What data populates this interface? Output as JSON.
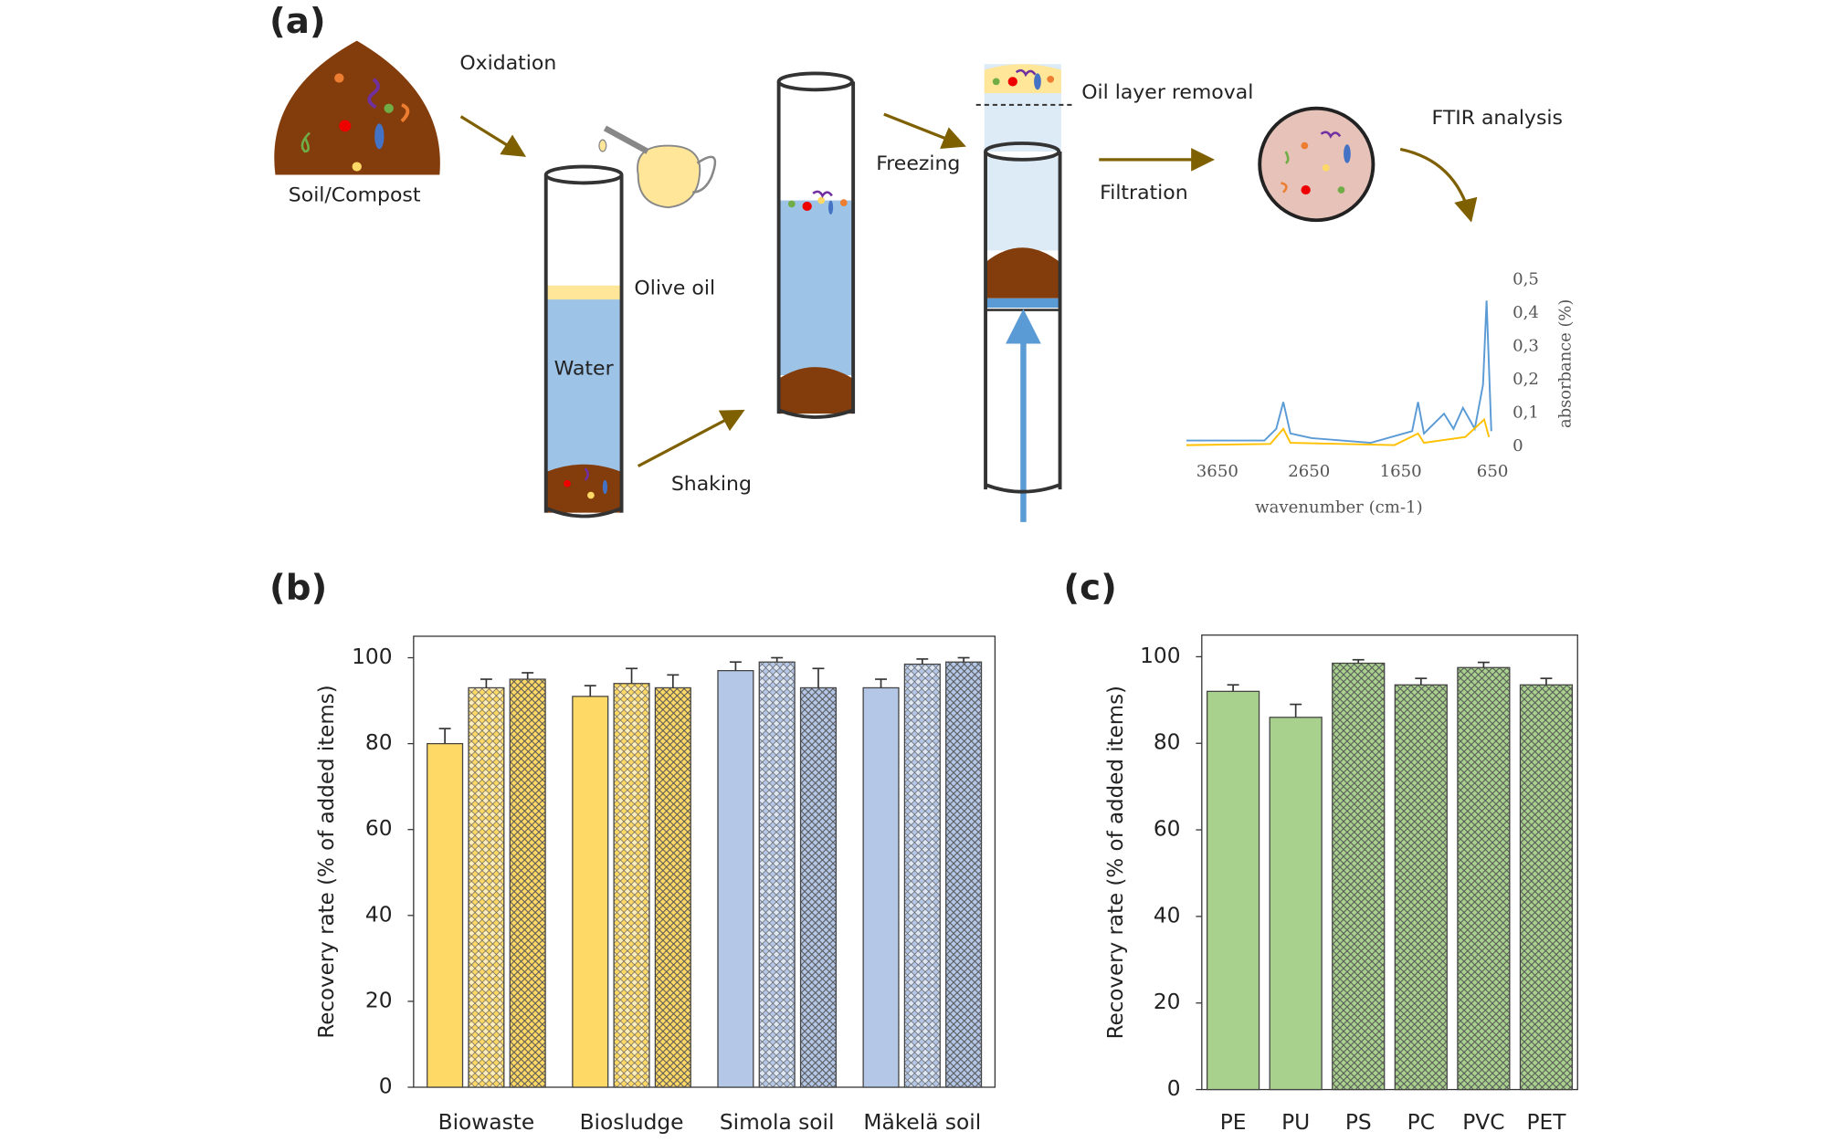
{
  "panels": {
    "a": "(a)",
    "b": "(b)",
    "c": "(c)"
  },
  "diagram": {
    "labels": {
      "oxidation": "Oxidation",
      "soil": "Soil/Compost",
      "olive_oil": "Olive oil",
      "water": "Water",
      "shaking": "Shaking",
      "freezing": "Freezing",
      "oil_removal": "Oil layer removal",
      "filtration": "Filtration",
      "ftir": "FTIR analysis"
    }
  },
  "chart_data": [
    {
      "type": "line",
      "xlabel": "wavenumber (cm-1)",
      "ylabel": "absorbance (%)",
      "xlim": [
        4000,
        650
      ],
      "xticks": [
        3650,
        2650,
        1650,
        650
      ],
      "ylim": [
        0,
        0.5
      ],
      "yticks": [
        0,
        {
          "value": 0.1,
          "label": "0,1"
        },
        {
          "value": 0.2,
          "label": "0,2"
        },
        {
          "value": 0.3,
          "label": "0,3"
        },
        {
          "value": 0.4,
          "label": "0,4"
        },
        {
          "value": 0.5,
          "label": "0,5"
        }
      ]
    },
    {
      "type": "bar",
      "ylabel": "Recovery rate (% of added items)",
      "categories": [
        "Biowaste",
        "Biosludge",
        "Simola soil",
        "Mäkelä soil"
      ],
      "category_colors": [
        "#ffd966",
        "#ffd966",
        "#b4c7e7",
        "#b4c7e7"
      ],
      "series": [
        {
          "pattern": "none",
          "values": [
            80,
            91,
            97,
            93
          ],
          "errors": [
            3.5,
            2.5,
            2,
            2
          ]
        },
        {
          "pattern": "dots",
          "values": [
            93,
            94,
            99,
            98.5
          ],
          "errors": [
            2,
            3.5,
            1,
            1.2
          ]
        },
        {
          "pattern": "cross",
          "values": [
            95,
            93,
            93,
            99
          ],
          "errors": [
            1.5,
            3,
            4.5,
            1
          ]
        }
      ],
      "ylim": [
        0,
        105
      ],
      "yticks": [
        0,
        20,
        40,
        60,
        80,
        100
      ],
      "grid": false
    },
    {
      "type": "bar",
      "ylabel": "Recovery rate (% of added items)",
      "categories": [
        "PE",
        "PU",
        "PS",
        "PC",
        "PVC",
        "PET"
      ],
      "color": "#a9d18e",
      "series": [
        {
          "patterns": [
            "none",
            "none",
            "cross",
            "cross",
            "cross",
            "cross"
          ],
          "values": [
            92,
            86,
            98.5,
            93.5,
            97.5,
            93.5
          ],
          "errors": [
            1.5,
            3,
            0.8,
            1.5,
            1.2,
            1.5
          ]
        }
      ],
      "ylim": [
        0,
        105
      ],
      "yticks": [
        0,
        20,
        40,
        60,
        80,
        100
      ],
      "grid": false
    }
  ]
}
